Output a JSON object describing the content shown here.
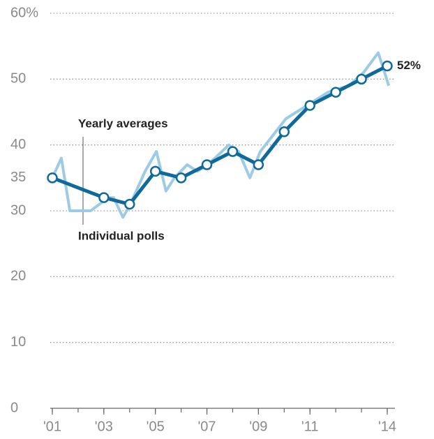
{
  "chart_data": {
    "type": "line",
    "xlim": [
      2001,
      2014
    ],
    "ylim": [
      0,
      60
    ],
    "xticks": [
      {
        "value": 2001,
        "label": "'01"
      },
      {
        "value": 2003,
        "label": "'03"
      },
      {
        "value": 2005,
        "label": "'05"
      },
      {
        "value": 2007,
        "label": "'07"
      },
      {
        "value": 2009,
        "label": "'09"
      },
      {
        "value": 2011,
        "label": "'11"
      },
      {
        "value": 2014,
        "label": "'14"
      }
    ],
    "yticks": [
      0,
      10,
      20,
      30,
      40,
      50,
      {
        "value": 60,
        "label": "60%"
      }
    ],
    "grid": true,
    "series": [
      {
        "name": "Individual polls",
        "color": "#9dcbe6",
        "x": [
          2001,
          2001.35,
          2001.68,
          2002.49,
          2003.17,
          2003.38,
          2003.74,
          2004.03,
          2004.6,
          2005.04,
          2005.41,
          2005.74,
          2006.23,
          2006.63,
          2007.04,
          2007.85,
          2008.23,
          2008.67,
          2009.07,
          2010.07,
          2010.48,
          2011.29,
          2011.7,
          2012.08,
          2012.51,
          2013.08,
          2013.65,
          2014.06
        ],
        "values": [
          35,
          38,
          30,
          30,
          32,
          32,
          29,
          31,
          36,
          39,
          33,
          35,
          37,
          36,
          37,
          40,
          39,
          35,
          39,
          44,
          45,
          47,
          48,
          48.5,
          49,
          51,
          54,
          49
        ]
      },
      {
        "name": "Yearly averages",
        "color": "#0f6a9b",
        "x": [
          2001,
          2003,
          2004,
          2005,
          2006,
          2007,
          2008,
          2009,
          2010,
          2011,
          2012,
          2013,
          2014
        ],
        "values": [
          35,
          32,
          31,
          36,
          35,
          37,
          39,
          37,
          42,
          46,
          48,
          50,
          52
        ],
        "value_labels": [
          "35",
          null,
          null,
          null,
          null,
          null,
          null,
          null,
          null,
          null,
          null,
          null,
          "52%"
        ]
      }
    ]
  }
}
